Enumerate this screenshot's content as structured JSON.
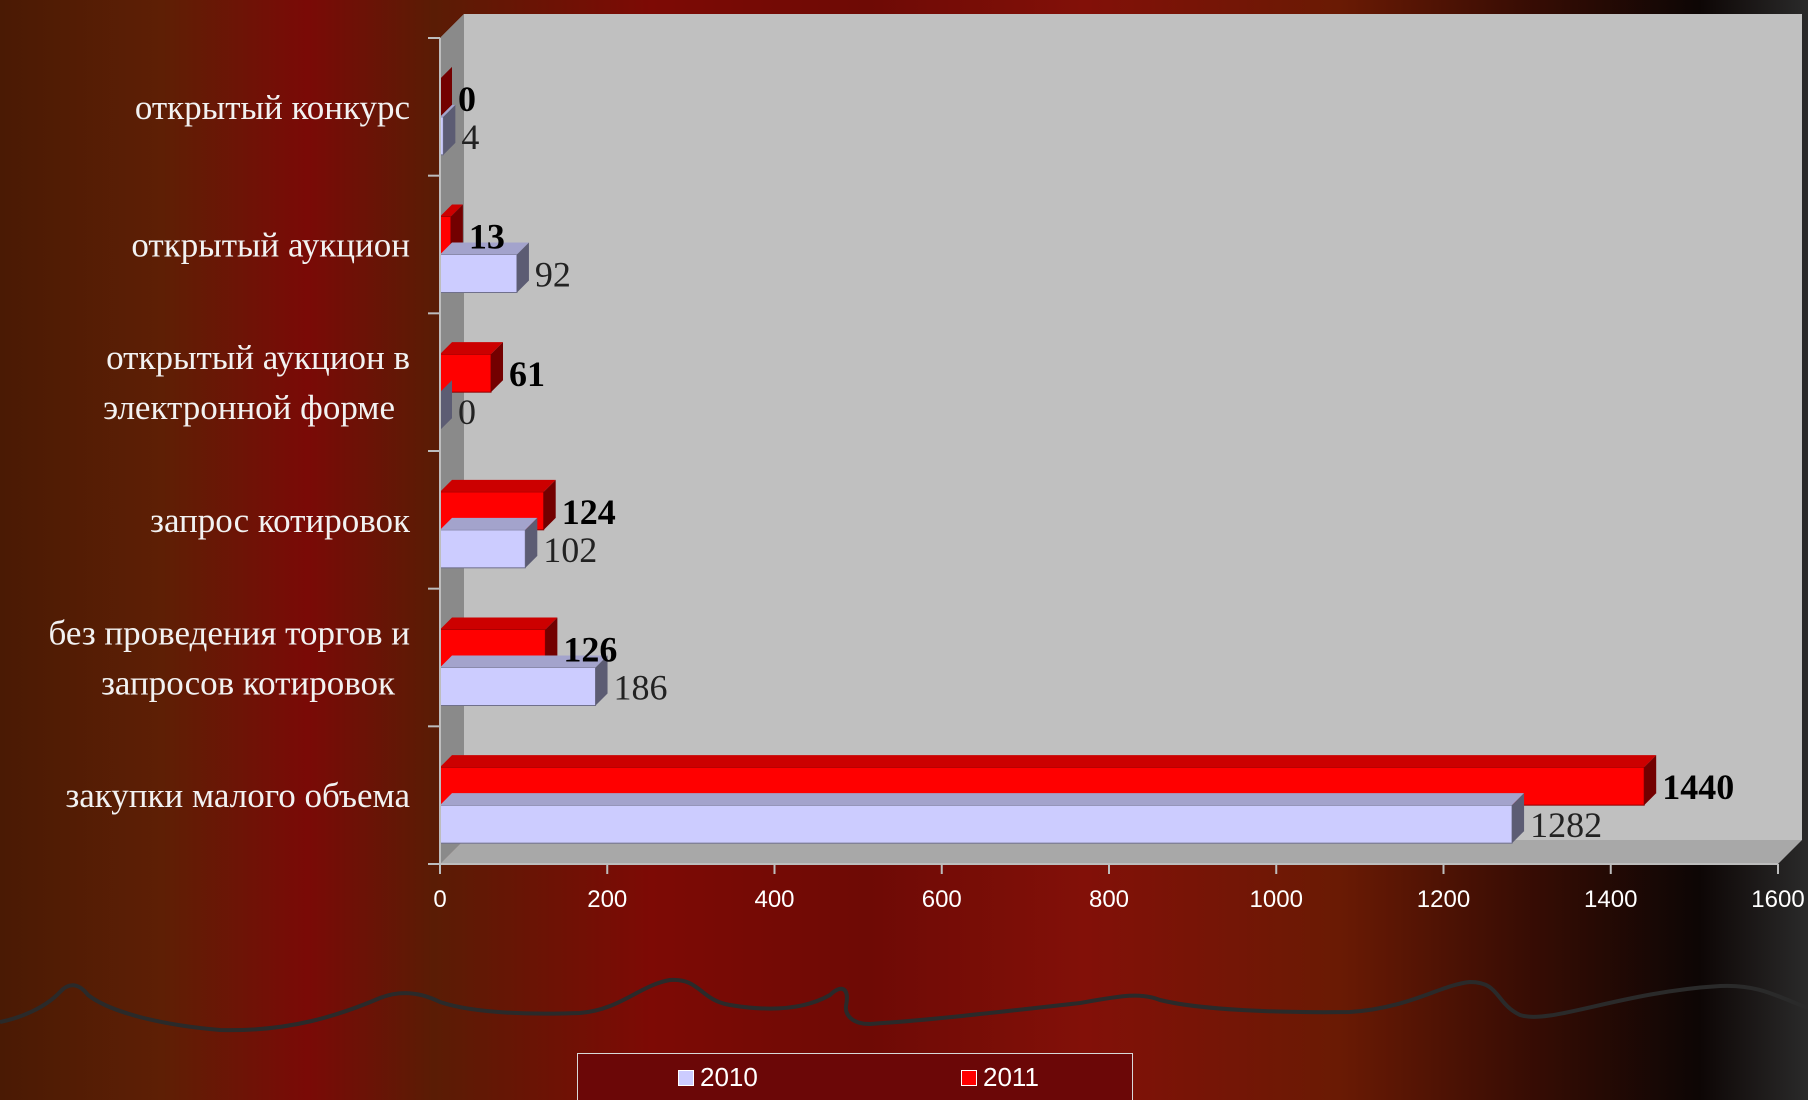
{
  "chart_data": {
    "type": "bar",
    "orientation": "horizontal",
    "categories": [
      "открытый конкурс",
      "открытый аукцион",
      "открытый аукцион в электронной форме",
      "запрос котировок",
      "без проведения торгов и запросов котировок",
      "закупки малого объема"
    ],
    "category_lines": [
      [
        "открытый конкурс"
      ],
      [
        "открытый аукцион"
      ],
      [
        "открытый аукцион в",
        "электронной форме"
      ],
      [
        "запрос котировок"
      ],
      [
        "без проведения торгов и",
        "запросов котировок"
      ],
      [
        "закупки малого объема"
      ]
    ],
    "series": [
      {
        "name": "2010",
        "values": [
          4,
          92,
          0,
          102,
          186,
          1282
        ],
        "color": "#ccccff"
      },
      {
        "name": "2011",
        "values": [
          0,
          13,
          61,
          124,
          126,
          1440
        ],
        "color": "#ff0000"
      }
    ],
    "xlim": [
      0,
      1600
    ],
    "xticks": [
      "0",
      "200",
      "400",
      "600",
      "800",
      "1000",
      "1200",
      "1400",
      "1600"
    ],
    "legend_position": "bottom",
    "grid": false,
    "style": "3d",
    "plot_background": "#c0c0c0"
  }
}
